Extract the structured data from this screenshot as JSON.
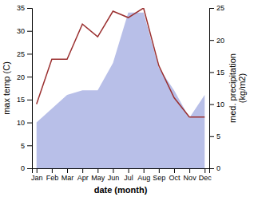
{
  "chart_data": {
    "type": "combo",
    "categories": [
      "Jan",
      "Feb",
      "Mar",
      "Apr",
      "May",
      "Jun",
      "Jul",
      "Aug",
      "Sep",
      "Oct",
      "Nov",
      "Dec"
    ],
    "xlabel": "date (month)",
    "ylabel": "max temp (C)",
    "y2label": "med. precipitation\n(kg/m2)",
    "ylim": [
      0,
      35
    ],
    "yticks": [
      0,
      5,
      10,
      15,
      20,
      25,
      30,
      35
    ],
    "y2lim": [
      0,
      25
    ],
    "y2ticks": [
      0,
      5,
      10,
      15,
      20,
      25
    ],
    "series": [
      {
        "type": "area",
        "color": "#b8bfe8",
        "values": [
          10,
          13,
          16,
          17,
          17,
          23,
          34,
          34,
          22,
          17,
          11,
          16
        ]
      },
      {
        "type": "line",
        "color": "#9b3030",
        "axis": "y2",
        "values": [
          10,
          17,
          17,
          22.5,
          20.5,
          24.5,
          23.5,
          25,
          16,
          11,
          8,
          8
        ]
      }
    ]
  }
}
